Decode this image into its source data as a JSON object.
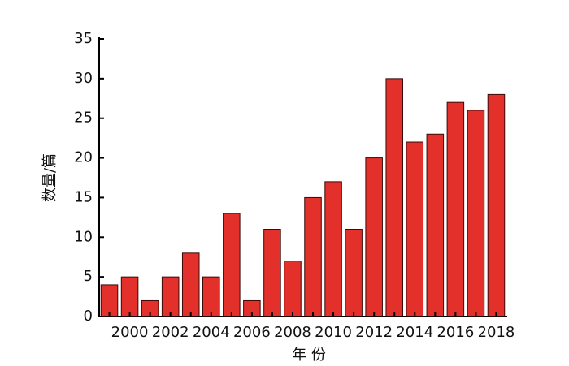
{
  "chart_data": {
    "type": "bar",
    "x_label": "年 份",
    "y_label": "数量/篇",
    "categories": [
      null,
      "2000",
      null,
      "2002",
      null,
      "2004",
      null,
      "2006",
      null,
      "2008",
      null,
      "2010",
      null,
      "2012",
      null,
      "2014",
      null,
      "2016",
      null,
      "2018"
    ],
    "values": [
      4,
      5,
      2,
      5,
      8,
      5,
      13,
      2,
      11,
      7,
      15,
      17,
      11,
      20,
      30,
      22,
      23,
      27,
      26,
      28
    ],
    "color": "#e3302b",
    "ylim": [
      0,
      35
    ],
    "yticks": [
      0,
      5,
      10,
      15,
      20,
      25,
      30,
      35
    ],
    "grid": false
  }
}
